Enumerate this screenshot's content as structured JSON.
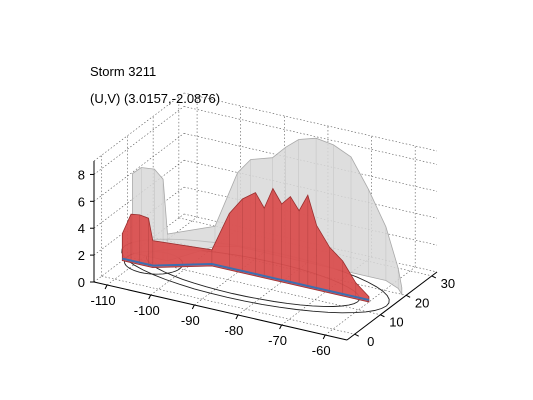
{
  "chart_data": {
    "type": "surface",
    "title": "Storm 3211",
    "subtitle": "(U,V) (3.0157,-2.0876)",
    "x_ticks": [
      -110,
      -100,
      -90,
      -80,
      -70,
      -60
    ],
    "y_ticks": [
      0,
      10,
      20,
      30
    ],
    "z_ticks": [
      0,
      2,
      4,
      6,
      8
    ],
    "xlim": [
      -113,
      -55
    ],
    "ylim": [
      -3,
      32
    ],
    "zlim": [
      0,
      9
    ],
    "grid": true,
    "isosurfaces": [
      {
        "color": "#d8d8d8",
        "opacity": "translucent"
      },
      {
        "color": "#d94f4f",
        "opacity": "opaque"
      }
    ],
    "outer_ridge": [
      {
        "x": -113,
        "y": 12,
        "z": 5.9
      },
      {
        "x": -111,
        "y": 12,
        "z": 6.5
      },
      {
        "x": -108,
        "y": 12,
        "z": 6.6
      },
      {
        "x": -106,
        "y": 12,
        "z": 6.0
      },
      {
        "x": -105,
        "y": 12,
        "z": 2.0
      },
      {
        "x": -100,
        "y": 22,
        "z": 1.5
      },
      {
        "x": -96,
        "y": 24,
        "z": 5.5
      },
      {
        "x": -93,
        "y": 24,
        "z": 6.7
      },
      {
        "x": -88,
        "y": 24,
        "z": 7.2
      },
      {
        "x": -85,
        "y": 24,
        "z": 8.2
      },
      {
        "x": -82,
        "y": 24,
        "z": 9.0
      },
      {
        "x": -78,
        "y": 24,
        "z": 9.4
      },
      {
        "x": -74,
        "y": 24,
        "z": 9.2
      },
      {
        "x": -70,
        "y": 24,
        "z": 8.6
      },
      {
        "x": -66,
        "y": 24,
        "z": 6.5
      },
      {
        "x": -62,
        "y": 24,
        "z": 4.0
      },
      {
        "x": -58,
        "y": 22,
        "z": 1.5
      },
      {
        "x": -56,
        "y": 20,
        "z": 0.5
      }
    ],
    "inner_ridge": [
      {
        "x": -113,
        "y": 8,
        "z": 2.0
      },
      {
        "x": -111,
        "y": 8,
        "z": 3.6
      },
      {
        "x": -109,
        "y": 8,
        "z": 3.7
      },
      {
        "x": -107,
        "y": 8,
        "z": 3.6
      },
      {
        "x": -106,
        "y": 8,
        "z": 2.0
      },
      {
        "x": -96,
        "y": 14,
        "z": 1.2
      },
      {
        "x": -92,
        "y": 14,
        "z": 4.2
      },
      {
        "x": -89,
        "y": 14,
        "z": 5.5
      },
      {
        "x": -86,
        "y": 14,
        "z": 6.2
      },
      {
        "x": -84,
        "y": 14,
        "z": 5.2
      },
      {
        "x": -82,
        "y": 14,
        "z": 6.8
      },
      {
        "x": -80,
        "y": 14,
        "z": 5.8
      },
      {
        "x": -78,
        "y": 14,
        "z": 6.5
      },
      {
        "x": -76,
        "y": 14,
        "z": 5.6
      },
      {
        "x": -74,
        "y": 14,
        "z": 6.9
      },
      {
        "x": -72,
        "y": 14,
        "z": 4.8
      },
      {
        "x": -69,
        "y": 14,
        "z": 3.4
      },
      {
        "x": -66,
        "y": 14,
        "z": 2.6
      },
      {
        "x": -63,
        "y": 14,
        "z": 1.2
      },
      {
        "x": -60,
        "y": 14,
        "z": 0.4
      }
    ]
  }
}
